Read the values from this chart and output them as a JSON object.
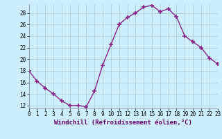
{
  "x": [
    0,
    1,
    2,
    3,
    4,
    5,
    6,
    7,
    8,
    9,
    10,
    11,
    12,
    13,
    14,
    15,
    16,
    17,
    18,
    19,
    20,
    21,
    22,
    23
  ],
  "y": [
    18,
    16.2,
    15,
    14,
    12.8,
    12,
    12,
    11.8,
    14.5,
    19,
    22.5,
    26,
    27.2,
    28,
    29,
    29.3,
    28.2,
    28.7,
    27.3,
    24,
    23,
    22,
    20.2,
    19.2
  ],
  "line_color": "#882288",
  "marker_color": "#882288",
  "bg_color": "#cceeff",
  "grid_color": "#aacccc",
  "xlabel": "Windchill (Refroidissement éolien,°C)",
  "xlim": [
    0,
    23
  ],
  "ylim": [
    11.5,
    29.5
  ],
  "yticks": [
    12,
    14,
    16,
    18,
    20,
    22,
    24,
    26,
    28
  ],
  "xticks": [
    0,
    1,
    2,
    3,
    4,
    5,
    6,
    7,
    8,
    9,
    10,
    11,
    12,
    13,
    14,
    15,
    16,
    17,
    18,
    19,
    20,
    21,
    22,
    23
  ],
  "xlabel_fontsize": 6.5,
  "tick_fontsize": 5.5,
  "line_width": 1.0,
  "marker_size": 4
}
